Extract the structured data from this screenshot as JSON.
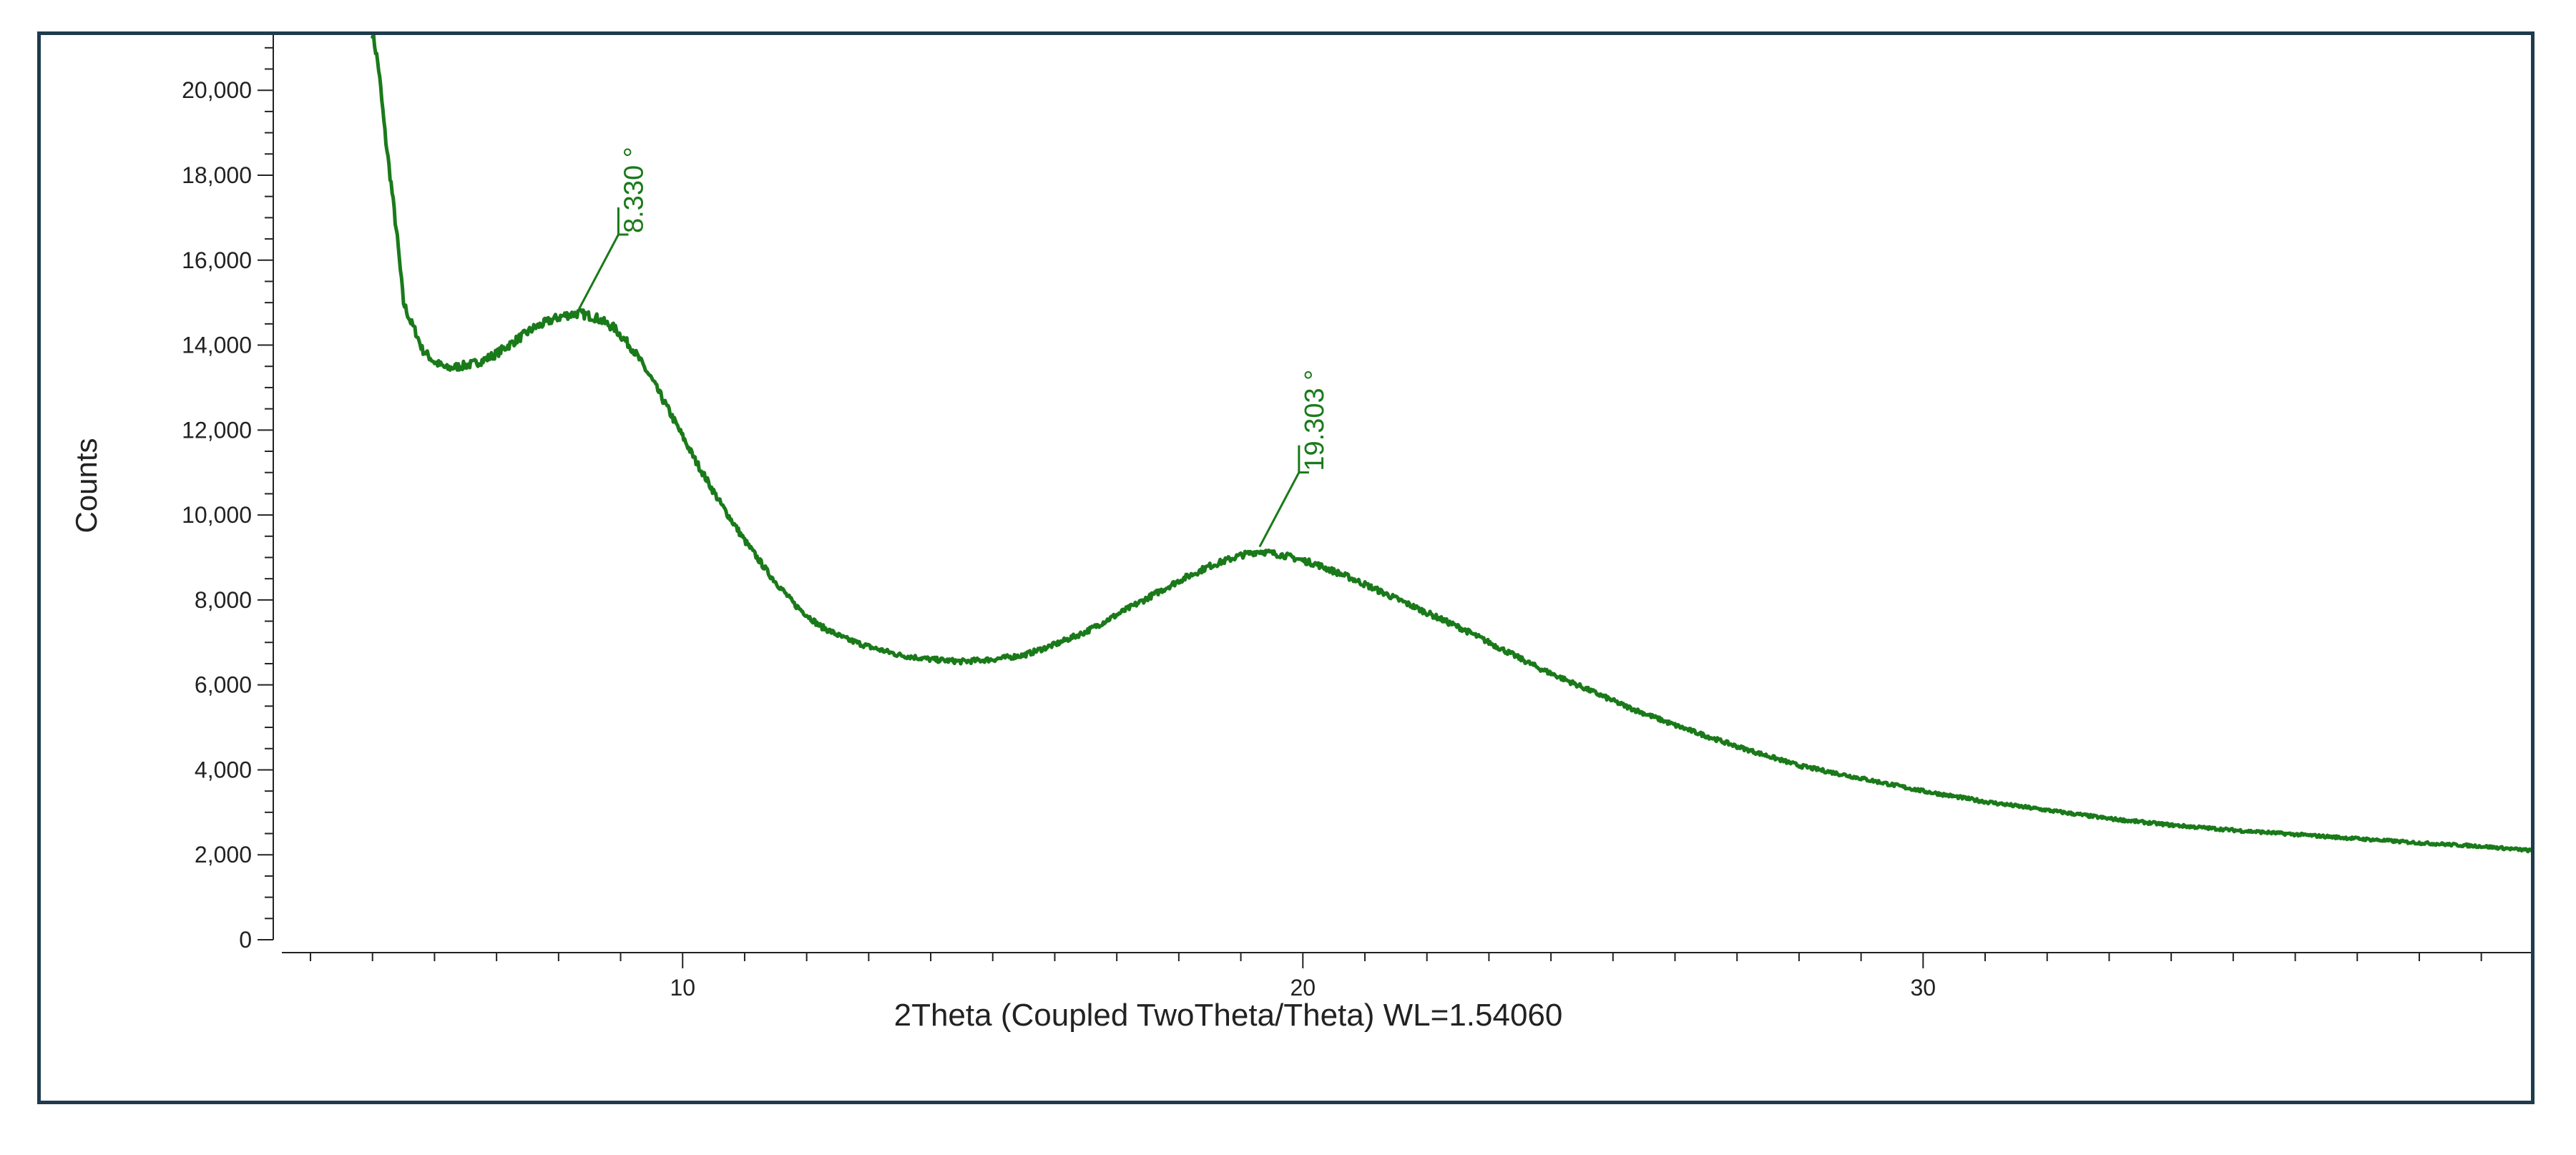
{
  "chart_data": {
    "type": "line",
    "title": "",
    "xlabel": "2Theta (Coupled TwoTheta/Theta) WL=1.54060",
    "ylabel": "Counts",
    "xlim": [
      3.4,
      39.8
    ],
    "ylim": [
      0,
      21300
    ],
    "x_major_ticks": [
      10,
      20,
      30
    ],
    "x_major_tick_labels": [
      "10",
      "20",
      "30"
    ],
    "x_minor_step": 1,
    "y_major_ticks": [
      0,
      2000,
      4000,
      6000,
      8000,
      10000,
      12000,
      14000,
      16000,
      18000,
      20000
    ],
    "y_major_tick_labels": [
      "0",
      "2,000",
      "4,000",
      "6,000",
      "8,000",
      "10,000",
      "12,000",
      "14,000",
      "16,000",
      "18,000",
      "20,000"
    ],
    "y_minor_step": 500,
    "grid": false,
    "line_color": "#1a7a1a",
    "series": [
      {
        "x": [
          5.0,
          5.1,
          5.2,
          5.3,
          5.4,
          5.5,
          5.6,
          5.7,
          5.8,
          6.0,
          6.2,
          6.4,
          6.6,
          6.8,
          7.0,
          7.3,
          7.6,
          7.9,
          8.1,
          8.33,
          8.6,
          8.9,
          9.2,
          9.5,
          9.8,
          10.2,
          10.6,
          11.0,
          11.4,
          11.8,
          12.2,
          12.6,
          13.0,
          13.5,
          14.0,
          14.5,
          15.0,
          15.5,
          16.0,
          16.5,
          17.0,
          17.5,
          18.0,
          18.5,
          19.0,
          19.303,
          19.7,
          20.2,
          20.8,
          21.4,
          22.0,
          22.6,
          23.2,
          23.8,
          24.5,
          25.2,
          26.0,
          27.0,
          28.0,
          29.0,
          30.0,
          31.0,
          32.0,
          33.0,
          34.0,
          35.0,
          36.0,
          37.0,
          38.0,
          39.0,
          39.8
        ],
        "y": [
          21400,
          20500,
          19000,
          17800,
          16500,
          15000,
          14600,
          14300,
          13900,
          13600,
          13450,
          13500,
          13550,
          13650,
          13800,
          14100,
          14400,
          14600,
          14700,
          14750,
          14650,
          14400,
          13900,
          13200,
          12400,
          11300,
          10300,
          9400,
          8600,
          7900,
          7400,
          7100,
          6900,
          6700,
          6600,
          6550,
          6600,
          6700,
          6950,
          7250,
          7650,
          8050,
          8450,
          8800,
          9050,
          9150,
          9050,
          8850,
          8500,
          8100,
          7700,
          7300,
          6850,
          6400,
          5950,
          5500,
          5050,
          4550,
          4100,
          3800,
          3500,
          3250,
          3050,
          2850,
          2700,
          2580,
          2480,
          2380,
          2280,
          2200,
          2100
        ]
      }
    ],
    "annotations": [
      {
        "text": "8.330 °",
        "x": 8.33,
        "y": 14750
      },
      {
        "text": "19.303 °",
        "x": 19.303,
        "y": 9150
      }
    ]
  }
}
